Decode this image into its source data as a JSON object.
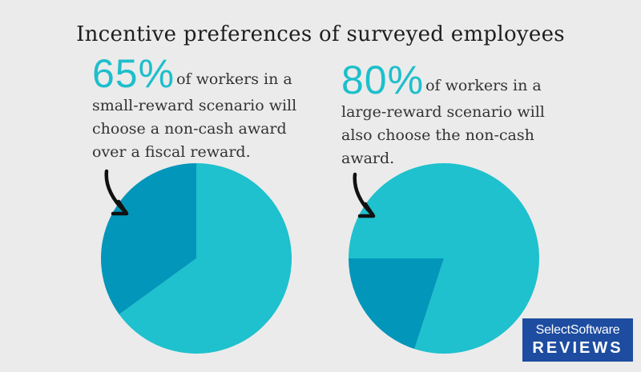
{
  "title": "Incentive preferences of surveyed employees",
  "colors": {
    "primary": "#1ec1cd",
    "secondary": "#0296ba",
    "accent": "#1dbfcb",
    "logo_bg": "#1d4ca0"
  },
  "left_stat": {
    "percent": "65%",
    "lines": [
      "of workers in a",
      "small-reward scenario will",
      "choose a non-cash award",
      "over a fiscal reward."
    ]
  },
  "right_stat": {
    "percent": "80%",
    "lines": [
      "of workers in a",
      "large-reward scenario will",
      "also choose the non-cash",
      "award."
    ]
  },
  "chart_data": [
    {
      "type": "pie",
      "title": "",
      "slices": [
        {
          "value": 65,
          "color": "#1ec1cd"
        },
        {
          "value": 35,
          "color": "#0296ba"
        }
      ]
    },
    {
      "type": "pie",
      "title": "",
      "slices": [
        {
          "value": 80,
          "color": "#1ec1cd"
        },
        {
          "value": 20,
          "color": "#0296ba"
        }
      ]
    }
  ],
  "logo": {
    "line1": "SelectSoftware",
    "line2": "REVIEWS"
  }
}
